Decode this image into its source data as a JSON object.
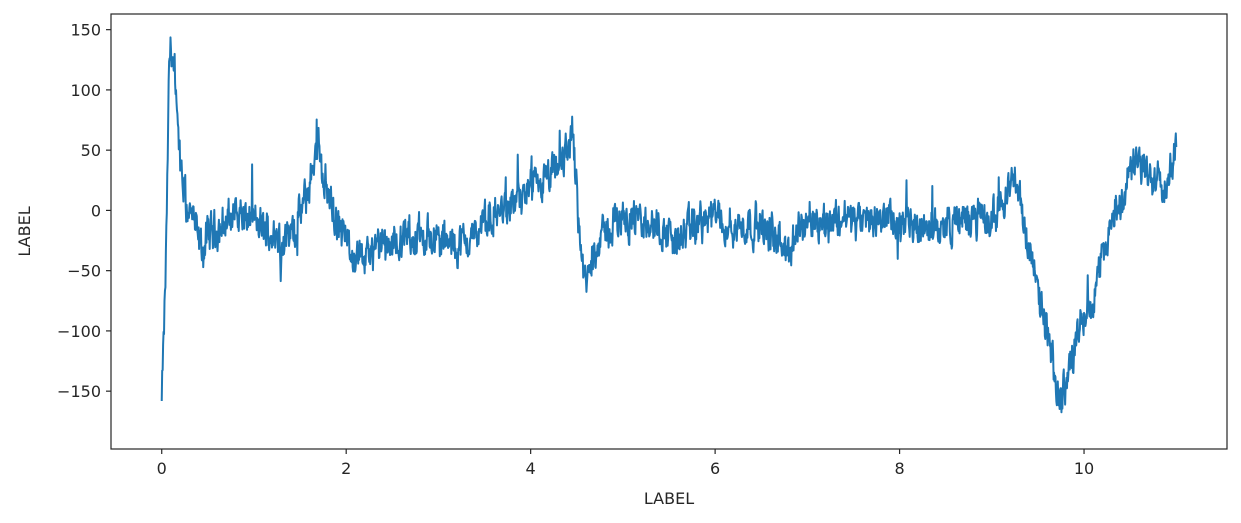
{
  "chart_data": {
    "type": "line",
    "title": "",
    "xlabel": "LABEL",
    "ylabel": "LABEL",
    "xlim": [
      -0.55,
      11.55
    ],
    "ylim": [
      -198,
      163
    ],
    "xticks": [
      0,
      2,
      4,
      6,
      8,
      10
    ],
    "xtick_labels": [
      "0",
      "2",
      "4",
      "6",
      "8",
      "10"
    ],
    "yticks": [
      -150,
      -100,
      -50,
      0,
      50,
      100,
      150
    ],
    "ytick_labels": [
      "−150",
      "−100",
      "−50",
      "0",
      "50",
      "100",
      "150"
    ],
    "grid": false,
    "legend": "none",
    "colors": {
      "line": "#1f77b4",
      "axes": "#262626",
      "background": "#ffffff"
    },
    "series": [
      {
        "x": [
          0.0,
          0.02,
          0.04,
          0.06,
          0.08,
          0.1,
          0.12,
          0.15,
          0.18,
          0.2,
          0.23,
          0.26,
          0.3,
          0.35,
          0.4,
          0.45,
          0.5,
          0.6,
          0.7,
          0.8,
          0.9,
          1.0,
          1.1,
          1.2,
          1.3,
          1.4,
          1.5,
          1.6,
          1.65,
          1.7,
          1.75,
          1.8,
          1.9,
          2.0,
          2.1,
          2.2,
          2.4,
          2.6,
          2.8,
          3.0,
          3.2,
          3.4,
          3.6,
          3.8,
          4.0,
          4.2,
          4.35,
          4.45,
          4.5,
          4.55,
          4.6,
          4.65,
          4.7,
          4.8,
          5.0,
          5.2,
          5.4,
          5.6,
          5.8,
          6.0,
          6.2,
          6.4,
          6.6,
          6.8,
          7.0,
          7.2,
          7.4,
          7.6,
          7.8,
          8.0,
          8.2,
          8.4,
          8.6,
          8.8,
          9.0,
          9.2,
          9.3,
          9.4,
          9.5,
          9.6,
          9.7,
          9.75,
          9.8,
          9.9,
          10.0,
          10.1,
          10.2,
          10.3,
          10.4,
          10.5,
          10.6,
          10.7,
          10.8,
          10.9,
          11.0
        ],
        "y": [
          -160,
          -110,
          -60,
          20,
          120,
          140,
          125,
          90,
          60,
          35,
          20,
          5,
          0,
          -10,
          -25,
          -35,
          -20,
          -15,
          -10,
          0,
          -5,
          -10,
          -15,
          -20,
          -25,
          -20,
          -5,
          20,
          40,
          60,
          30,
          15,
          -10,
          -25,
          -35,
          -40,
          -30,
          -25,
          -20,
          -25,
          -30,
          -20,
          -5,
          5,
          15,
          25,
          40,
          65,
          20,
          -40,
          -65,
          -45,
          -30,
          -20,
          -5,
          -10,
          -15,
          -25,
          -10,
          -5,
          -15,
          -10,
          -20,
          -35,
          -5,
          -10,
          -5,
          -10,
          -5,
          -15,
          -10,
          -15,
          -10,
          -5,
          -10,
          25,
          15,
          -30,
          -70,
          -100,
          -150,
          -160,
          -140,
          -110,
          -90,
          -70,
          -40,
          -10,
          10,
          30,
          40,
          25,
          35,
          20,
          60
        ]
      }
    ]
  }
}
